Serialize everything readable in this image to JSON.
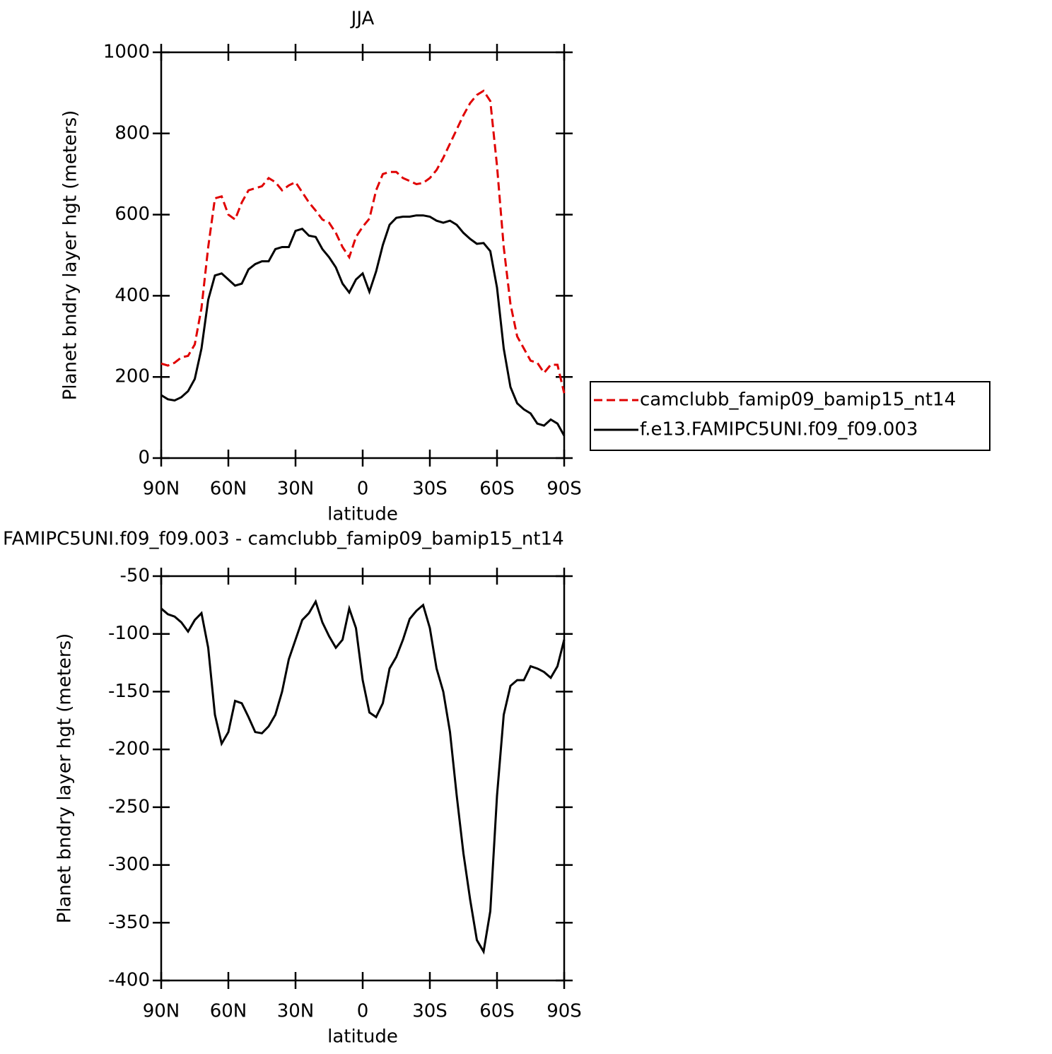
{
  "chart_data": [
    {
      "type": "line",
      "title": "JJA",
      "xlabel": "latitude",
      "ylabel": "Planet bndry layer hgt (meters)",
      "x": [
        90,
        87,
        84,
        81,
        78,
        75,
        72,
        69,
        66,
        63,
        60,
        57,
        54,
        51,
        48,
        45,
        42,
        39,
        36,
        33,
        30,
        27,
        24,
        21,
        18,
        15,
        12,
        9,
        6,
        3,
        0,
        -3,
        -6,
        -9,
        -12,
        -15,
        -18,
        -21,
        -24,
        -27,
        -30,
        -33,
        -36,
        -39,
        -42,
        -45,
        -48,
        -51,
        -54,
        -57,
        -60,
        -63,
        -66,
        -69,
        -72,
        -75,
        -78,
        -81,
        -84,
        -87,
        -90
      ],
      "series": [
        {
          "name": "camclubb_famip09_bamip15_nt14",
          "color": "#e00000",
          "dashed": true,
          "values": [
            233,
            228,
            235,
            248,
            252,
            280,
            370,
            520,
            640,
            645,
            600,
            588,
            630,
            660,
            665,
            670,
            690,
            680,
            660,
            672,
            680,
            655,
            630,
            610,
            588,
            580,
            555,
            520,
            495,
            545,
            570,
            590,
            660,
            700,
            705,
            705,
            690,
            683,
            675,
            678,
            690,
            710,
            740,
            775,
            810,
            845,
            875,
            895,
            905,
            880,
            720,
            520,
            380,
            300,
            270,
            240,
            235,
            210,
            230,
            230,
            160
          ]
        },
        {
          "name": "f.e13.FAMIPC5UNI.f09_f09.003",
          "color": "#000000",
          "dashed": false,
          "values": [
            155,
            145,
            142,
            150,
            165,
            195,
            270,
            390,
            450,
            455,
            440,
            425,
            430,
            465,
            478,
            485,
            485,
            515,
            520,
            520,
            560,
            565,
            548,
            545,
            515,
            495,
            470,
            430,
            408,
            440,
            455,
            410,
            460,
            525,
            575,
            592,
            595,
            595,
            598,
            598,
            595,
            585,
            580,
            585,
            575,
            555,
            540,
            528,
            530,
            510,
            420,
            270,
            175,
            135,
            120,
            110,
            85,
            80,
            95,
            85,
            55
          ]
        }
      ],
      "xlim": [
        90,
        -90
      ],
      "xticks": [
        {
          "value": 90,
          "label": "90N"
        },
        {
          "value": 60,
          "label": "60N"
        },
        {
          "value": 30,
          "label": "30N"
        },
        0,
        {
          "value": -30,
          "label": "30S"
        },
        {
          "value": -60,
          "label": "60S"
        },
        {
          "value": -90,
          "label": "90S"
        }
      ],
      "ylim": [
        0,
        1000
      ],
      "yticks": [
        0,
        200,
        400,
        600,
        800,
        1000
      ],
      "legend": "right"
    },
    {
      "type": "line",
      "title": "FAMIPC5UNI.f09_f09.003 - camclubb_famip09_bamip15_nt14",
      "xlabel": "latitude",
      "ylabel": "Planet bndry layer hgt (meters)",
      "x": [
        90,
        87,
        84,
        81,
        78,
        75,
        72,
        69,
        66,
        63,
        60,
        57,
        54,
        51,
        48,
        45,
        42,
        39,
        36,
        33,
        30,
        27,
        24,
        21,
        18,
        15,
        12,
        9,
        6,
        3,
        0,
        -3,
        -6,
        -9,
        -12,
        -15,
        -18,
        -21,
        -24,
        -27,
        -30,
        -33,
        -36,
        -39,
        -42,
        -45,
        -48,
        -51,
        -54,
        -57,
        -60,
        -63,
        -66,
        -69,
        -72,
        -75,
        -78,
        -81,
        -84,
        -87,
        -90
      ],
      "color": "#000000",
      "values": [
        -78,
        -83,
        -85,
        -90,
        -98,
        -88,
        -82,
        -112,
        -170,
        -195,
        -185,
        -158,
        -160,
        -172,
        -185,
        -186,
        -180,
        -170,
        -150,
        -122,
        -105,
        -88,
        -82,
        -72,
        -90,
        -102,
        -112,
        -105,
        -78,
        -95,
        -140,
        -168,
        -172,
        -160,
        -130,
        -120,
        -105,
        -87,
        -80,
        -75,
        -95,
        -130,
        -150,
        -185,
        -240,
        -290,
        -330,
        -365,
        -375,
        -340,
        -240,
        -170,
        -145,
        -140,
        -140,
        -128,
        -130,
        -133,
        -138,
        -128,
        -105
      ],
      "xlim": [
        90,
        -90
      ],
      "xticks": [
        {
          "value": 90,
          "label": "90N"
        },
        {
          "value": 60,
          "label": "60N"
        },
        {
          "value": 30,
          "label": "30N"
        },
        0,
        {
          "value": -30,
          "label": "30S"
        },
        {
          "value": -60,
          "label": "60S"
        },
        {
          "value": -90,
          "label": "90S"
        }
      ],
      "ylim": [
        -400,
        -50
      ],
      "yticks": [
        -400,
        -350,
        -300,
        -250,
        -200,
        -150,
        -100,
        -50
      ]
    }
  ]
}
